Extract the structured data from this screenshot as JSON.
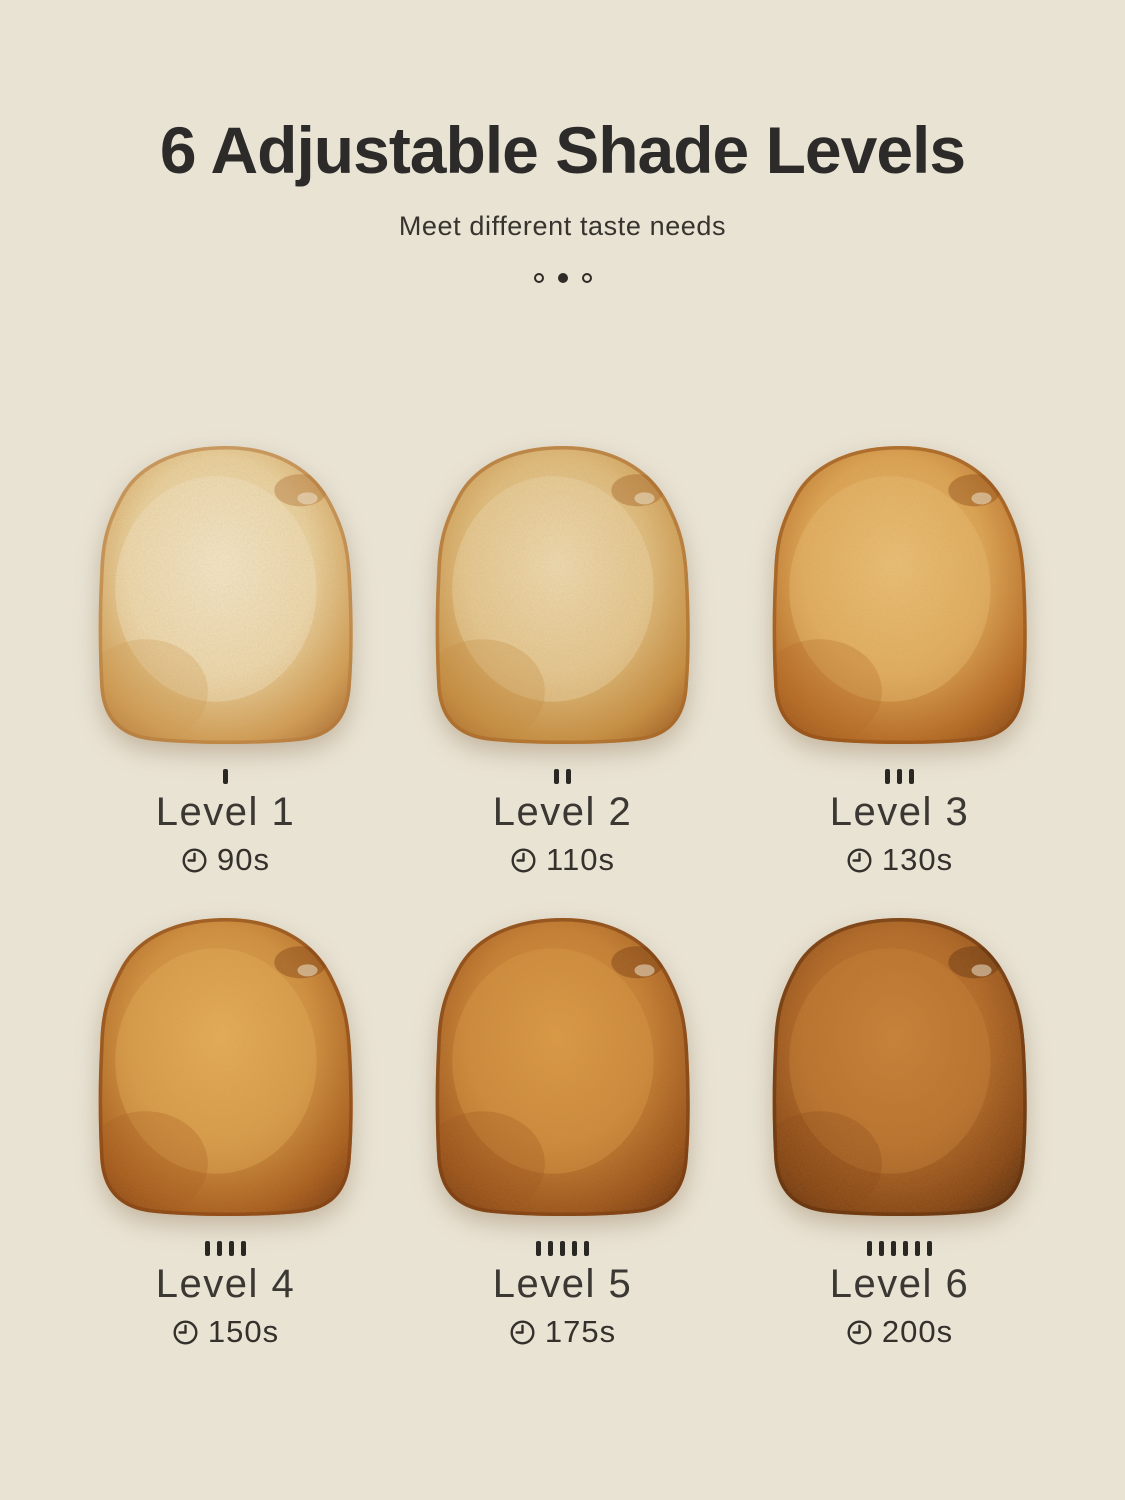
{
  "page": {
    "background_color": "#e9e3d4",
    "title_color": "#2c2b29",
    "text_color": "#3b3833"
  },
  "header": {
    "title": "6 Adjustable Shade Levels",
    "subtitle": "Meet different taste needs"
  },
  "pagination_dots": {
    "count": 3,
    "active_index": 1
  },
  "icons": {
    "time": "clock-icon"
  },
  "levels": [
    {
      "label": "Level 1",
      "time": "90s",
      "ticks": 1,
      "toast_colors": {
        "center": "#f4e8cb",
        "mid": "#ead29f",
        "crust": "#d29e55",
        "crust_dark": "#b3763a"
      }
    },
    {
      "label": "Level 2",
      "time": "110s",
      "ticks": 2,
      "toast_colors": {
        "center": "#efdcb2",
        "mid": "#e0bd7e",
        "crust": "#c78f42",
        "crust_dark": "#a66527"
      }
    },
    {
      "label": "Level 3",
      "time": "130s",
      "ticks": 3,
      "toast_colors": {
        "center": "#ecc176",
        "mid": "#dda453",
        "crust": "#b66a24",
        "crust_dark": "#8f4c16"
      }
    },
    {
      "label": "Level 4",
      "time": "150s",
      "ticks": 4,
      "toast_colors": {
        "center": "#e5ae58",
        "mid": "#d19140",
        "crust": "#a95e1d",
        "crust_dark": "#814012"
      }
    },
    {
      "label": "Level 5",
      "time": "175s",
      "ticks": 5,
      "toast_colors": {
        "center": "#dd9a45",
        "mid": "#c67f33",
        "crust": "#9b5319",
        "crust_dark": "#763a10"
      }
    },
    {
      "label": "Level 6",
      "time": "200s",
      "ticks": 6,
      "toast_colors": {
        "center": "#c98136",
        "mid": "#b26927",
        "crust": "#874614",
        "crust_dark": "#5f300d"
      }
    }
  ]
}
